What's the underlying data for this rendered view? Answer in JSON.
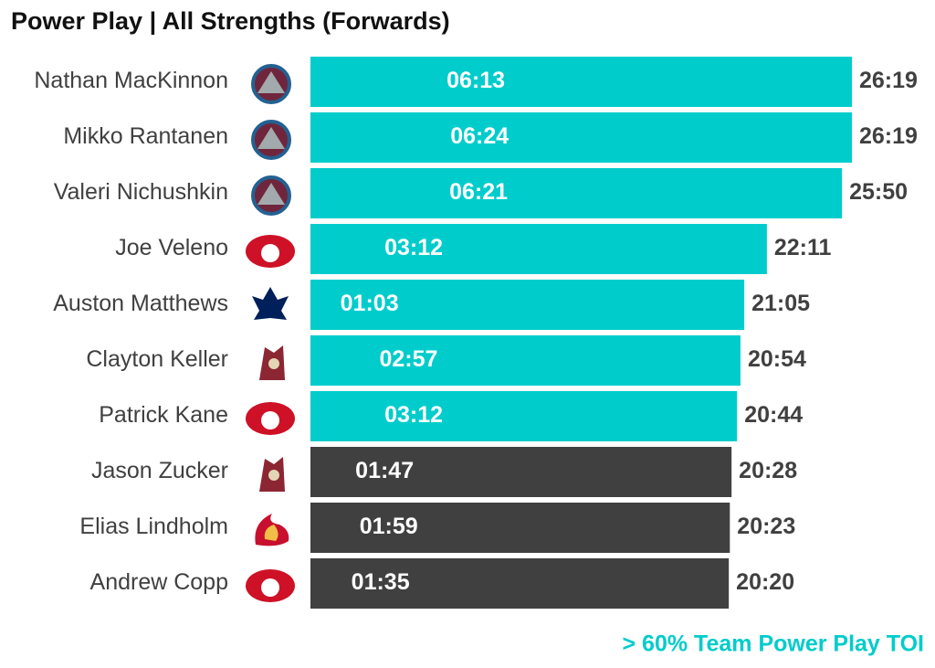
{
  "chart_data": {
    "type": "bar",
    "orientation": "horizontal",
    "title": "Power Play | All Strengths (Forwards)",
    "categories": [
      "Nathan MacKinnon",
      "Mikko Rantanen",
      "Valeri Nichushkin",
      "Joe Veleno",
      "Auston Matthews",
      "Clayton Keller",
      "Patrick Kane",
      "Jason Zucker",
      "Elias Lindholm",
      "Andrew Copp"
    ],
    "values": [
      1579,
      1579,
      1550,
      1331,
      1265,
      1254,
      1244,
      1228,
      1223,
      1220
    ],
    "value_labels": [
      "26:19",
      "26:19",
      "25:50",
      "22:11",
      "21:05",
      "20:54",
      "20:44",
      "20:28",
      "20:23",
      "20:20"
    ],
    "colors": [
      "#00cccc",
      "#00cccc",
      "#00cccc",
      "#00cccc",
      "#00cccc",
      "#00cccc",
      "#00cccc",
      "#404040",
      "#404040",
      "#404040"
    ],
    "inner_values": [
      373,
      384,
      381,
      192,
      63,
      177,
      192,
      107,
      119,
      95
    ],
    "inner_value_labels": [
      "06:13",
      "06:24",
      "06:21",
      "03:12",
      "01:03",
      "02:57",
      "03:12",
      "01:47",
      "01:59",
      "01:35"
    ],
    "annotation": "> 60% Team Power Play TOI",
    "annotation_color": "#00cccc"
  }
}
